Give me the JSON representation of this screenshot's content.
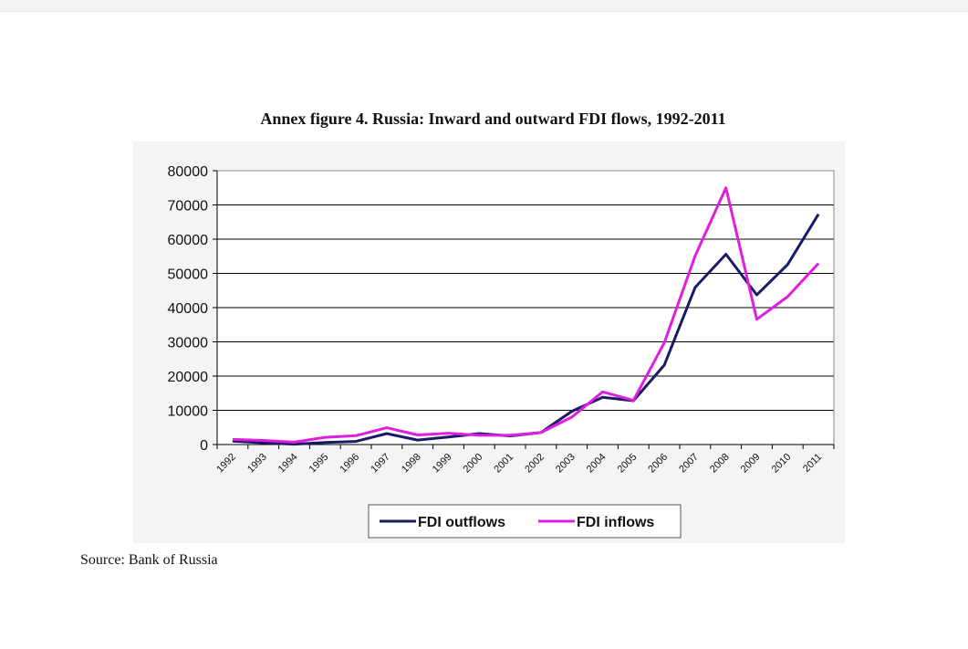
{
  "title": "Annex figure 4. Russia: Inward and outward FDI flows, 1992-2011",
  "source": "Source: Bank of Russia",
  "colors": {
    "outflows": "#1a1a66",
    "inflows": "#e01ee0",
    "gridline": "#000000",
    "panel": "#f4f4f4"
  },
  "chart_data": {
    "type": "line",
    "title": "Annex figure 4. Russia: Inward and outward FDI flows, 1992-2011",
    "xlabel": "",
    "ylabel": "",
    "ylim": [
      0,
      80000
    ],
    "yticks": [
      0,
      10000,
      20000,
      30000,
      40000,
      50000,
      60000,
      70000,
      80000
    ],
    "grid": true,
    "legend_position": "bottom",
    "categories": [
      "1992",
      "1993",
      "1994",
      "1995",
      "1996",
      "1997",
      "1998",
      "1999",
      "2000",
      "2001",
      "2002",
      "2003",
      "2004",
      "2005",
      "2006",
      "2007",
      "2008",
      "2009",
      "2010",
      "2011"
    ],
    "series": [
      {
        "name": "FDI outflows",
        "color": "#1a1a66",
        "values": [
          1000,
          500,
          100,
          600,
          900,
          3200,
          1300,
          2200,
          3200,
          2500,
          3500,
          9700,
          13800,
          12800,
          23200,
          45900,
          55600,
          43700,
          52600,
          67300
        ]
      },
      {
        "name": "FDI inflows",
        "color": "#e01ee0",
        "values": [
          1500,
          1200,
          700,
          2100,
          2600,
          4900,
          2800,
          3300,
          2700,
          2700,
          3500,
          8000,
          15400,
          12900,
          29700,
          55100,
          75000,
          36600,
          43200,
          52900
        ]
      }
    ]
  }
}
